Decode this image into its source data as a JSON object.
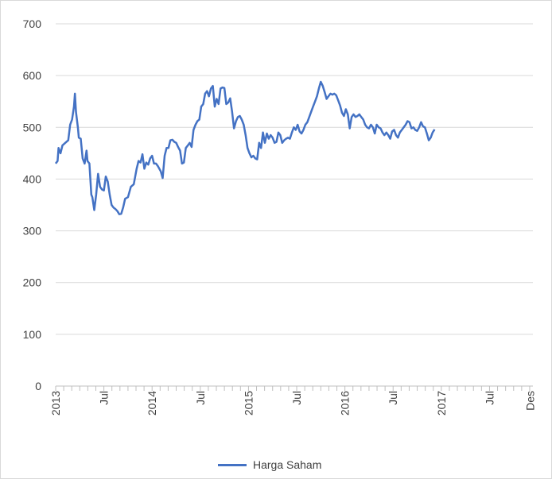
{
  "chart_data": {
    "type": "line",
    "title": "",
    "xlabel": "",
    "ylabel": "",
    "ylim": [
      0,
      700
    ],
    "y_ticks": [
      "0",
      "100",
      "200",
      "300",
      "400",
      "500",
      "600",
      "700"
    ],
    "x_ticks": [
      {
        "label": "2013",
        "t": 0
      },
      {
        "label": "Jul",
        "t": 0.5
      },
      {
        "label": "2014",
        "t": 1
      },
      {
        "label": "Jul",
        "t": 1.5
      },
      {
        "label": "2015",
        "t": 2
      },
      {
        "label": "Jul",
        "t": 2.5
      },
      {
        "label": "2016",
        "t": 3
      },
      {
        "label": "Jul",
        "t": 3.5
      },
      {
        "label": "2017",
        "t": 4
      },
      {
        "label": "Jul",
        "t": 4.5
      },
      {
        "label": "Des",
        "t": 4.92
      }
    ],
    "grid": true,
    "legend_position": "bottom",
    "color": "#4472C4",
    "series": [
      {
        "name": "Harga Saham",
        "points": [
          [
            0.0,
            430
          ],
          [
            0.02,
            435
          ],
          [
            0.03,
            460
          ],
          [
            0.05,
            450
          ],
          [
            0.07,
            465
          ],
          [
            0.1,
            470
          ],
          [
            0.13,
            475
          ],
          [
            0.15,
            505
          ],
          [
            0.17,
            515
          ],
          [
            0.19,
            540
          ],
          [
            0.2,
            565
          ],
          [
            0.21,
            530
          ],
          [
            0.23,
            500
          ],
          [
            0.24,
            480
          ],
          [
            0.26,
            478
          ],
          [
            0.28,
            440
          ],
          [
            0.3,
            430
          ],
          [
            0.32,
            455
          ],
          [
            0.33,
            435
          ],
          [
            0.35,
            430
          ],
          [
            0.37,
            370
          ],
          [
            0.38,
            365
          ],
          [
            0.4,
            340
          ],
          [
            0.42,
            370
          ],
          [
            0.44,
            410
          ],
          [
            0.46,
            385
          ],
          [
            0.48,
            380
          ],
          [
            0.5,
            378
          ],
          [
            0.52,
            405
          ],
          [
            0.54,
            395
          ],
          [
            0.56,
            370
          ],
          [
            0.58,
            350
          ],
          [
            0.6,
            345
          ],
          [
            0.62,
            342
          ],
          [
            0.64,
            338
          ],
          [
            0.66,
            332
          ],
          [
            0.68,
            333
          ],
          [
            0.7,
            345
          ],
          [
            0.72,
            362
          ],
          [
            0.75,
            365
          ],
          [
            0.78,
            385
          ],
          [
            0.81,
            390
          ],
          [
            0.84,
            420
          ],
          [
            0.86,
            435
          ],
          [
            0.88,
            432
          ],
          [
            0.9,
            448
          ],
          [
            0.92,
            420
          ],
          [
            0.94,
            432
          ],
          [
            0.96,
            428
          ],
          [
            0.98,
            440
          ],
          [
            1.0,
            445
          ],
          [
            1.02,
            430
          ],
          [
            1.04,
            430
          ],
          [
            1.06,
            425
          ],
          [
            1.09,
            415
          ],
          [
            1.11,
            402
          ],
          [
            1.13,
            445
          ],
          [
            1.15,
            460
          ],
          [
            1.17,
            460
          ],
          [
            1.19,
            475
          ],
          [
            1.21,
            476
          ],
          [
            1.23,
            472
          ],
          [
            1.25,
            470
          ],
          [
            1.27,
            462
          ],
          [
            1.29,
            455
          ],
          [
            1.31,
            430
          ],
          [
            1.33,
            432
          ],
          [
            1.35,
            460
          ],
          [
            1.37,
            465
          ],
          [
            1.39,
            470
          ],
          [
            1.41,
            462
          ],
          [
            1.43,
            495
          ],
          [
            1.45,
            505
          ],
          [
            1.47,
            512
          ],
          [
            1.49,
            515
          ],
          [
            1.51,
            540
          ],
          [
            1.53,
            545
          ],
          [
            1.55,
            565
          ],
          [
            1.57,
            570
          ],
          [
            1.59,
            560
          ],
          [
            1.61,
            575
          ],
          [
            1.63,
            580
          ],
          [
            1.65,
            540
          ],
          [
            1.67,
            555
          ],
          [
            1.69,
            545
          ],
          [
            1.71,
            575
          ],
          [
            1.73,
            577
          ],
          [
            1.75,
            576
          ],
          [
            1.77,
            545
          ],
          [
            1.79,
            548
          ],
          [
            1.81,
            556
          ],
          [
            1.83,
            530
          ],
          [
            1.85,
            498
          ],
          [
            1.87,
            512
          ],
          [
            1.89,
            520
          ],
          [
            1.91,
            522
          ],
          [
            1.93,
            515
          ],
          [
            1.95,
            505
          ],
          [
            1.97,
            485
          ],
          [
            1.99,
            460
          ],
          [
            2.01,
            450
          ],
          [
            2.03,
            442
          ],
          [
            2.05,
            445
          ],
          [
            2.07,
            440
          ],
          [
            2.09,
            438
          ],
          [
            2.11,
            470
          ],
          [
            2.13,
            460
          ],
          [
            2.15,
            490
          ],
          [
            2.17,
            470
          ],
          [
            2.19,
            488
          ],
          [
            2.21,
            478
          ],
          [
            2.23,
            485
          ],
          [
            2.25,
            480
          ],
          [
            2.27,
            470
          ],
          [
            2.29,
            472
          ],
          [
            2.31,
            490
          ],
          [
            2.33,
            485
          ],
          [
            2.35,
            470
          ],
          [
            2.37,
            475
          ],
          [
            2.39,
            478
          ],
          [
            2.41,
            480
          ],
          [
            2.43,
            478
          ],
          [
            2.45,
            490
          ],
          [
            2.47,
            500
          ],
          [
            2.49,
            495
          ],
          [
            2.51,
            505
          ],
          [
            2.53,
            492
          ],
          [
            2.55,
            488
          ],
          [
            2.57,
            495
          ],
          [
            2.59,
            505
          ],
          [
            2.61,
            510
          ],
          [
            2.63,
            520
          ],
          [
            2.65,
            530
          ],
          [
            2.67,
            540
          ],
          [
            2.69,
            550
          ],
          [
            2.71,
            560
          ],
          [
            2.73,
            575
          ],
          [
            2.75,
            588
          ],
          [
            2.77,
            580
          ],
          [
            2.79,
            568
          ],
          [
            2.81,
            555
          ],
          [
            2.83,
            560
          ],
          [
            2.85,
            565
          ],
          [
            2.87,
            563
          ],
          [
            2.89,
            565
          ],
          [
            2.91,
            562
          ],
          [
            2.93,
            552
          ],
          [
            2.95,
            542
          ],
          [
            2.97,
            528
          ],
          [
            2.99,
            522
          ],
          [
            3.01,
            535
          ],
          [
            3.03,
            525
          ],
          [
            3.05,
            498
          ],
          [
            3.07,
            520
          ],
          [
            3.09,
            525
          ],
          [
            3.11,
            520
          ],
          [
            3.13,
            522
          ],
          [
            3.15,
            525
          ],
          [
            3.17,
            520
          ],
          [
            3.19,
            515
          ],
          [
            3.21,
            505
          ],
          [
            3.23,
            500
          ],
          [
            3.25,
            498
          ],
          [
            3.27,
            505
          ],
          [
            3.29,
            500
          ],
          [
            3.31,
            488
          ],
          [
            3.33,
            505
          ],
          [
            3.35,
            500
          ],
          [
            3.37,
            498
          ],
          [
            3.39,
            490
          ],
          [
            3.41,
            485
          ],
          [
            3.43,
            490
          ],
          [
            3.45,
            485
          ],
          [
            3.47,
            478
          ],
          [
            3.49,
            492
          ],
          [
            3.51,
            495
          ],
          [
            3.53,
            485
          ],
          [
            3.55,
            480
          ],
          [
            3.57,
            490
          ],
          [
            3.59,
            495
          ],
          [
            3.61,
            500
          ],
          [
            3.63,
            505
          ],
          [
            3.65,
            512
          ],
          [
            3.67,
            510
          ],
          [
            3.69,
            498
          ],
          [
            3.71,
            500
          ],
          [
            3.73,
            495
          ],
          [
            3.75,
            493
          ],
          [
            3.77,
            500
          ],
          [
            3.79,
            510
          ],
          [
            3.81,
            502
          ],
          [
            3.83,
            500
          ],
          [
            3.85,
            488
          ],
          [
            3.87,
            475
          ],
          [
            3.89,
            480
          ],
          [
            3.91,
            490
          ],
          [
            3.93,
            496
          ]
        ]
      }
    ]
  }
}
